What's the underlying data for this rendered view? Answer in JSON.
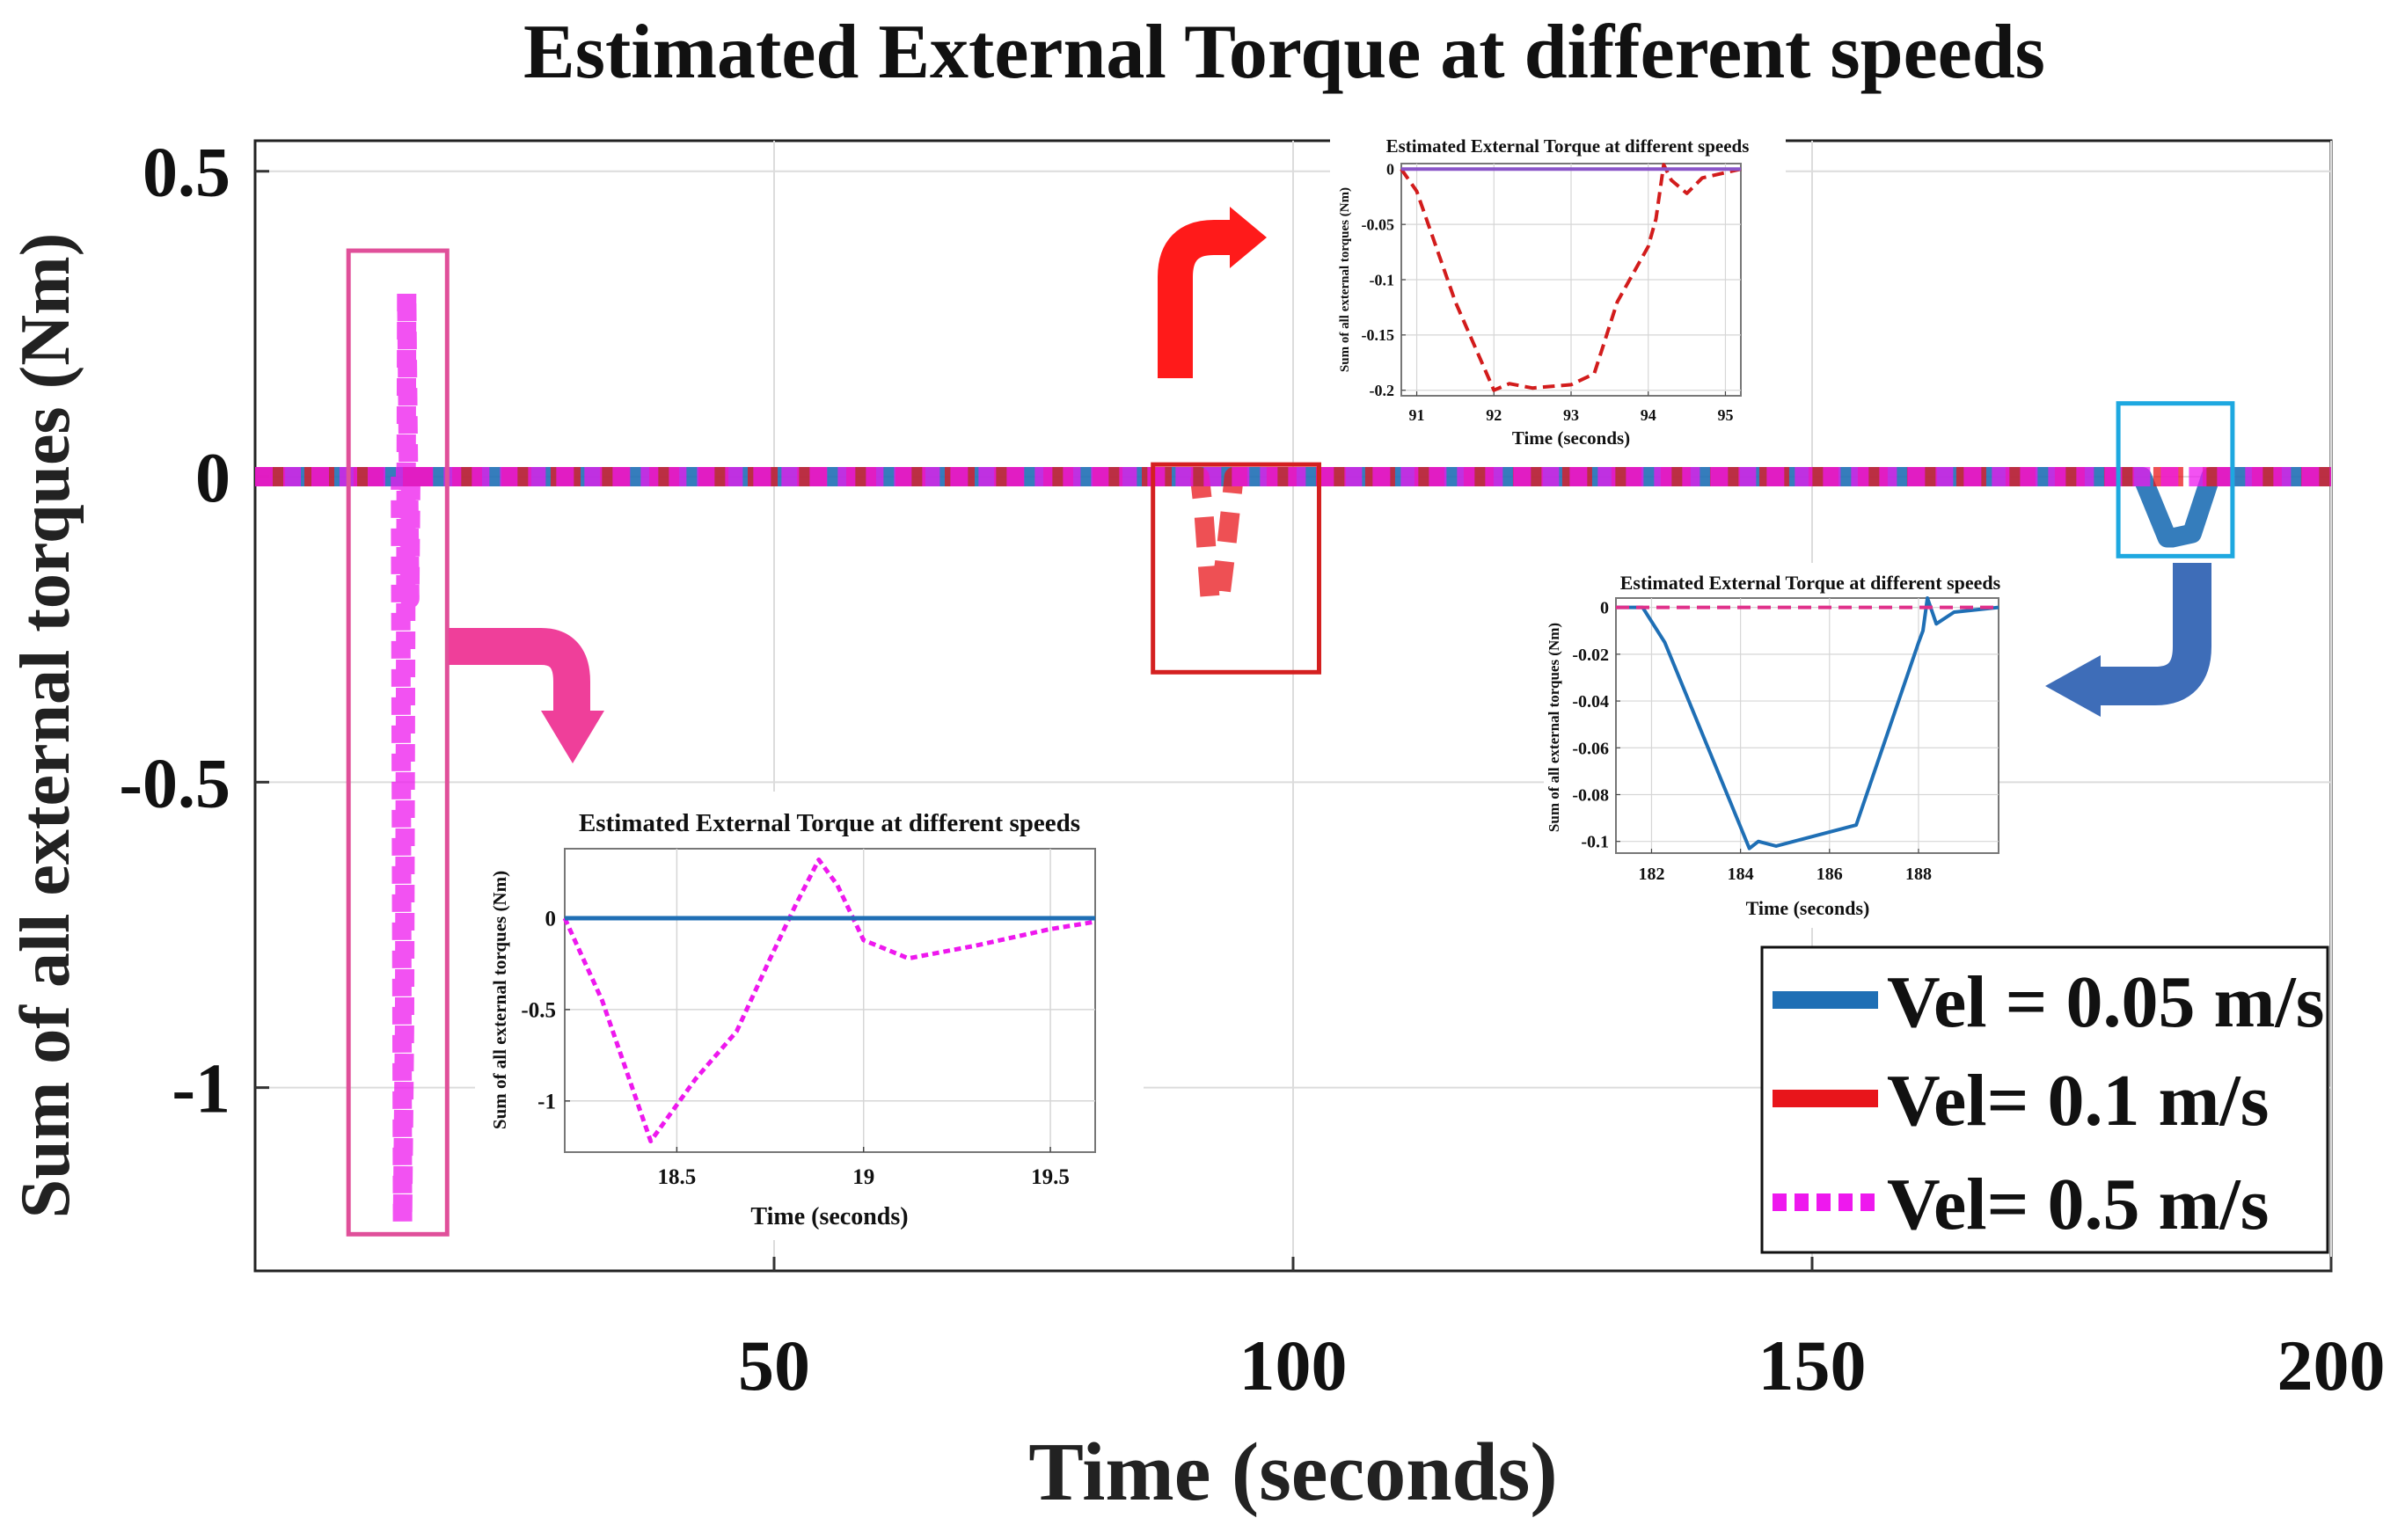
{
  "chart_data": [
    {
      "id": "main",
      "type": "line",
      "title": "Estimated External Torque at different speeds",
      "xlabel": "Time (seconds)",
      "ylabel": "Sum of all external torques (Nm)",
      "xlim": [
        0,
        200
      ],
      "ylim": [
        -1.3,
        0.55
      ],
      "xticks": [
        50,
        100,
        150,
        200
      ],
      "yticks": [
        0.5,
        0,
        -0.5,
        -1
      ],
      "ytick_labels": [
        "0.5",
        "0",
        "-0.5",
        "-1"
      ],
      "grid": true,
      "legend_position": "bottom-right",
      "legend": [
        "Vel = 0.05 m/s",
        "Vel= 0.1 m/s",
        "Vel= 0.5 m/s"
      ],
      "series": [
        {
          "name": "Vel = 0.05 m/s",
          "style": "solid",
          "color": "#1f6fb5",
          "x": [
            0,
            181.8,
            184.2,
            184.7,
            186.6,
            188.2,
            188.4,
            188.8,
            200
          ],
          "y": [
            0,
            0,
            -0.1,
            -0.1,
            -0.093,
            -0.01,
            0,
            0,
            0
          ]
        },
        {
          "name": "Vel= 0.1 m/s",
          "style": "dashed",
          "color": "#e8151b",
          "x": [
            0,
            91,
            91.4,
            92,
            92.3,
            93,
            93.4,
            94,
            94.3,
            200
          ],
          "y": [
            0,
            0,
            -0.06,
            -0.2,
            -0.195,
            -0.195,
            -0.14,
            -0.05,
            0,
            0
          ]
        },
        {
          "name": "Vel= 0.5 m/s",
          "style": "dotted",
          "color": "#ee18ee",
          "x": [
            0,
            14,
            14.2,
            14.4,
            14.6,
            14.9,
            15,
            200
          ],
          "y": [
            0,
            0,
            -1.22,
            -0.9,
            0.3,
            -0.2,
            0,
            0
          ]
        }
      ],
      "highlight_boxes": [
        {
          "series": "Vel= 0.5 m/s",
          "color": "#e0509a",
          "x_range": [
            9,
            18.5
          ],
          "y_range": [
            -1.24,
            0.37
          ]
        },
        {
          "series": "Vel= 0.1 m/s",
          "color": "#d42020",
          "x_range": [
            86.5,
            102.5
          ],
          "y_range": [
            -0.32,
            0.02
          ]
        },
        {
          "series": "Vel = 0.05 m/s",
          "color": "#1ea8e0",
          "x_range": [
            179.5,
            190.5
          ],
          "y_range": [
            -0.13,
            0.12
          ]
        }
      ]
    },
    {
      "id": "inset_05",
      "type": "line",
      "title": "Estimated External Torque at different speeds",
      "xlabel": "Time (seconds)",
      "ylabel": "Sum of all external torques (Nm)",
      "xlim": [
        18.2,
        19.62
      ],
      "ylim": [
        -1.28,
        0.38
      ],
      "xticks": [
        18.5,
        19,
        19.5
      ],
      "xtick_labels": [
        "18.5",
        "19",
        "19.5"
      ],
      "yticks": [
        0,
        -0.5,
        -1
      ],
      "ytick_labels": [
        "0",
        "-0.5",
        "-1"
      ],
      "series": [
        {
          "name": "Vel= 0.5 m/s",
          "style": "dotted",
          "color": "#ee18ee",
          "x": [
            18.2,
            18.3,
            18.43,
            18.55,
            18.66,
            18.75,
            18.82,
            18.88,
            18.93,
            19.0,
            19.12,
            19.3,
            19.5,
            19.62
          ],
          "y": [
            0,
            -0.45,
            -1.22,
            -0.88,
            -0.62,
            -0.22,
            0.08,
            0.32,
            0.18,
            -0.12,
            -0.22,
            -0.15,
            -0.06,
            -0.02
          ]
        },
        {
          "name": "Vel= 0.1 m/s",
          "style": "dashed",
          "color": "#e8151b",
          "x": [
            18.2,
            19.62
          ],
          "y": [
            0,
            0
          ]
        },
        {
          "name": "Vel = 0.05 m/s",
          "style": "solid",
          "color": "#1f6fb5",
          "x": [
            18.2,
            19.62
          ],
          "y": [
            0,
            0
          ]
        }
      ]
    },
    {
      "id": "inset_01",
      "type": "line",
      "title": "Estimated External Torque at different speeds",
      "xlabel": "Time (seconds)",
      "ylabel": "Sum of all external torques (Nm)",
      "xlim": [
        90.8,
        95.2
      ],
      "ylim": [
        -0.205,
        0.005
      ],
      "xticks": [
        91,
        92,
        93,
        94,
        95
      ],
      "xtick_labels": [
        "91",
        "92",
        "93",
        "94",
        "95"
      ],
      "yticks": [
        0,
        -0.05,
        -0.1,
        -0.15,
        -0.2
      ],
      "ytick_labels": [
        "0",
        "-0.05",
        "-0.1",
        "-0.15",
        "-0.2"
      ],
      "series": [
        {
          "name": "Vel= 0.1 m/s",
          "style": "dashed",
          "color": "#d21c1c",
          "x": [
            90.8,
            91.0,
            91.5,
            92.0,
            92.2,
            92.5,
            93.0,
            93.3,
            93.6,
            94.0,
            94.1,
            94.2,
            94.3,
            94.5,
            94.7,
            95.2
          ],
          "y": [
            0,
            -0.02,
            -0.12,
            -0.2,
            -0.194,
            -0.198,
            -0.195,
            -0.185,
            -0.12,
            -0.07,
            -0.045,
            0.004,
            -0.01,
            -0.022,
            -0.008,
            0
          ]
        },
        {
          "name": "Vel = 0.05 m/s",
          "style": "solid",
          "color": "#8a55c8",
          "x": [
            90.8,
            95.2
          ],
          "y": [
            0,
            0
          ]
        }
      ]
    },
    {
      "id": "inset_005",
      "type": "line",
      "title": "Estimated External Torque at different speeds",
      "xlabel": "Time (seconds)",
      "ylabel": "Sum of all external torques (Nm)",
      "xlim": [
        181.2,
        189.8
      ],
      "ylim": [
        -0.105,
        0.004
      ],
      "xticks": [
        182,
        184,
        186,
        188
      ],
      "xtick_labels": [
        "182",
        "184",
        "186",
        "188"
      ],
      "yticks": [
        0,
        -0.02,
        -0.04,
        -0.06,
        -0.08,
        -0.1
      ],
      "ytick_labels": [
        "0",
        "-0.02",
        "-0.04",
        "-0.06",
        "-0.08",
        "-0.1"
      ],
      "series": [
        {
          "name": "Vel = 0.05 m/s",
          "style": "solid",
          "color": "#1f6fb5",
          "x": [
            181.2,
            181.8,
            182.3,
            184.2,
            184.4,
            184.8,
            186.6,
            188.0,
            188.1,
            188.2,
            188.4,
            188.8,
            189.8
          ],
          "y": [
            0,
            0,
            -0.015,
            -0.103,
            -0.1,
            -0.102,
            -0.093,
            -0.015,
            -0.01,
            0.004,
            -0.007,
            -0.002,
            0
          ]
        },
        {
          "name": "Vel= 0.5 m/s",
          "style": "dashed",
          "color": "#e0308a",
          "x": [
            181.2,
            189.8
          ],
          "y": [
            0,
            0
          ]
        }
      ]
    }
  ]
}
